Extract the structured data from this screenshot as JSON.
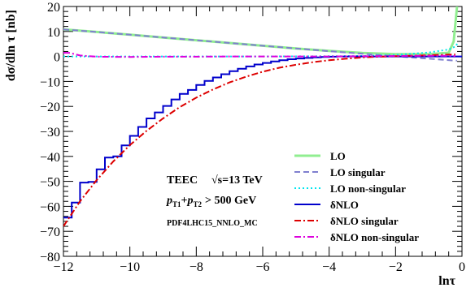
{
  "chart_data": {
    "type": "line",
    "title": "",
    "xlabel": "lnτ",
    "ylabel": "dσ/dln τ  [nb]",
    "xlim": [
      -12,
      0
    ],
    "ylim": [
      -80,
      20
    ],
    "xticks": [
      -12,
      -10,
      -8,
      -6,
      -4,
      -2,
      0
    ],
    "yticks": [
      -80,
      -70,
      -60,
      -50,
      -40,
      -30,
      -20,
      -10,
      0,
      10,
      20
    ],
    "grid": false,
    "legend_position": "bottom-right",
    "annotations": {
      "process": "TEEC",
      "energy": "√s=13 TeV",
      "cut_pt1": "p",
      "cut_sub1": "T1",
      "cut_plus": "+",
      "cut_pt2": "p",
      "cut_sub2": "T2",
      "cut_value": "> 500 GeV",
      "pdf": "PDF4LHC15_NNLO_MC"
    },
    "series": [
      {
        "name": "LO",
        "color": "#90ee90",
        "style": "solid",
        "step": false,
        "x": [
          -12,
          -11,
          -10,
          -9,
          -8,
          -7,
          -6,
          -5,
          -4,
          -3,
          -2,
          -1,
          -0.4,
          -0.25,
          -0.15
        ],
        "y": [
          10.8,
          9.8,
          8.7,
          7.6,
          6.5,
          5.4,
          4.3,
          3.2,
          2.2,
          1.4,
          0.9,
          0.9,
          1.5,
          6,
          20
        ]
      },
      {
        "name": "LO singular",
        "color": "#7f7fcf",
        "style": "dash",
        "step": false,
        "x": [
          -12,
          -11,
          -10,
          -9,
          -8,
          -7,
          -6,
          -5,
          -4,
          -3,
          -2,
          -1,
          -0.3,
          -0.15
        ],
        "y": [
          10.8,
          9.8,
          8.7,
          7.6,
          6.5,
          5.4,
          4.3,
          3.2,
          2.1,
          1.1,
          0.1,
          -0.9,
          -1.6,
          -1.7
        ]
      },
      {
        "name": "LO non-singular",
        "color": "#00e5ee",
        "style": "dot",
        "step": false,
        "x": [
          -12,
          -10,
          -8,
          -6,
          -4,
          -3,
          -2,
          -1,
          -0.4,
          -0.2,
          -0.12
        ],
        "y": [
          0,
          0,
          0,
          0,
          0.1,
          0.2,
          0.6,
          1.6,
          2.8,
          4,
          5.5
        ]
      },
      {
        "name": "δNLO",
        "color": "#0000cc",
        "style": "solid",
        "step": true,
        "x": [
          -12,
          -11.75,
          -11.5,
          -11.25,
          -11,
          -10.75,
          -10.5,
          -10.25,
          -10,
          -9.75,
          -9.5,
          -9.25,
          -9,
          -8.75,
          -8.5,
          -8.25,
          -8,
          -7.75,
          -7.5,
          -7.25,
          -7,
          -6.75,
          -6.5,
          -6.25,
          -6,
          -5.75,
          -5.5,
          -5.25,
          -5,
          -4.75,
          -4.5,
          -4.25,
          -4,
          -3.75,
          -3.5,
          -3.25,
          -3,
          -2.75,
          -2.5,
          -2.25,
          -2,
          -1.75,
          -1.5,
          -1.25,
          -1,
          -0.75,
          -0.5,
          -0.25
        ],
        "y": [
          -64.5,
          -58.5,
          -50.5,
          -50.2,
          -45.2,
          -40.5,
          -40,
          -35.6,
          -31.8,
          -28.2,
          -24.8,
          -22.4,
          -19.8,
          -17.2,
          -15,
          -13.4,
          -11.4,
          -9.8,
          -8.4,
          -7.1,
          -5.9,
          -4.9,
          -4.0,
          -3.2,
          -2.6,
          -2.0,
          -1.5,
          -1.1,
          -0.8,
          -0.6,
          -0.4,
          -0.2,
          -0.1,
          0,
          0,
          0,
          0,
          0,
          0,
          0,
          0,
          0,
          0,
          0,
          0,
          0,
          0,
          0
        ]
      },
      {
        "name": "δNLO singular",
        "color": "#dd0000",
        "style": "dashdot",
        "step": false,
        "x": [
          -12,
          -11.5,
          -11,
          -10.5,
          -10,
          -9.5,
          -9,
          -8.5,
          -8,
          -7.5,
          -7,
          -6.5,
          -6,
          -5.5,
          -5,
          -4.5,
          -4,
          -3.5,
          -3,
          -2.5,
          -2,
          -1.5,
          -1,
          -0.5,
          -0.2
        ],
        "y": [
          -68,
          -58,
          -49.5,
          -42,
          -35.5,
          -29.8,
          -24.8,
          -20.3,
          -16.5,
          -13.2,
          -10.4,
          -8.1,
          -6.1,
          -4.5,
          -3.3,
          -2.3,
          -1.5,
          -0.9,
          -0.4,
          -0.1,
          0.1,
          0.3,
          0.5,
          0.7,
          0.8
        ]
      },
      {
        "name": "δNLO non-singular",
        "color": "#dd00dd",
        "style": "dashdot",
        "step": false,
        "x": [
          -12,
          -11.8,
          -11.5,
          -11,
          -10,
          -9,
          -8,
          -7,
          -6,
          -5,
          -4,
          -3,
          -2,
          -1,
          -0.5,
          -0.2
        ],
        "y": [
          1.5,
          1.4,
          0.4,
          -0.1,
          -0.2,
          -0.1,
          -0.1,
          0,
          0,
          0,
          0,
          0.1,
          0.2,
          0.3,
          0.3,
          0.2
        ]
      }
    ]
  }
}
